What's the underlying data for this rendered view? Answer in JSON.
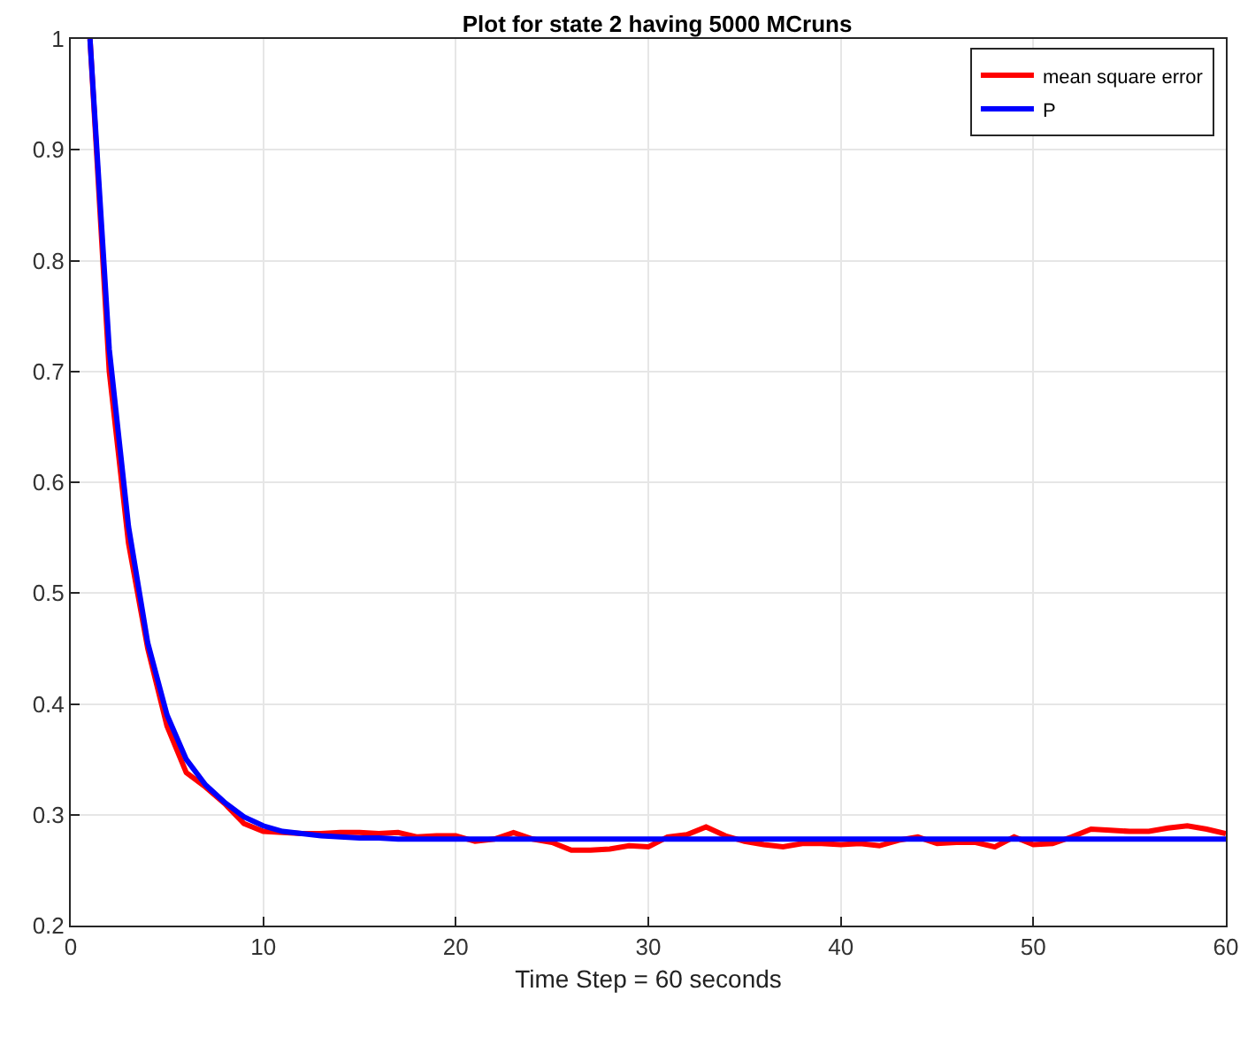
{
  "chart_data": {
    "type": "line",
    "title": "Plot for state 2 having 5000 MCruns",
    "xlabel": "Time Step = 60 seconds",
    "x": [
      1,
      2,
      3,
      4,
      5,
      6,
      7,
      8,
      9,
      10,
      11,
      12,
      13,
      14,
      15,
      16,
      17,
      18,
      19,
      20,
      21,
      22,
      23,
      24,
      25,
      26,
      27,
      28,
      29,
      30,
      31,
      32,
      33,
      34,
      35,
      36,
      37,
      38,
      39,
      40,
      41,
      42,
      43,
      44,
      45,
      46,
      47,
      48,
      49,
      50,
      51,
      52,
      53,
      54,
      55,
      56,
      57,
      58,
      59,
      60
    ],
    "series": [
      {
        "name": "mean square error",
        "color": "#ff0000",
        "values": [
          1.0,
          0.7,
          0.545,
          0.45,
          0.38,
          0.338,
          0.325,
          0.31,
          0.292,
          0.285,
          0.284,
          0.283,
          0.283,
          0.284,
          0.284,
          0.283,
          0.284,
          0.28,
          0.281,
          0.281,
          0.276,
          0.278,
          0.284,
          0.278,
          0.275,
          0.268,
          0.268,
          0.269,
          0.272,
          0.271,
          0.28,
          0.282,
          0.289,
          0.281,
          0.276,
          0.273,
          0.271,
          0.274,
          0.274,
          0.273,
          0.274,
          0.272,
          0.277,
          0.28,
          0.274,
          0.275,
          0.275,
          0.271,
          0.28,
          0.273,
          0.274,
          0.28,
          0.287,
          0.286,
          0.285,
          0.285,
          0.288,
          0.29,
          0.287,
          0.283
        ]
      },
      {
        "name": "P",
        "color": "#0000ff",
        "values": [
          1.0,
          0.72,
          0.56,
          0.455,
          0.39,
          0.35,
          0.327,
          0.311,
          0.298,
          0.29,
          0.285,
          0.283,
          0.281,
          0.28,
          0.279,
          0.279,
          0.278,
          0.278,
          0.278,
          0.278,
          0.278,
          0.278,
          0.278,
          0.278,
          0.278,
          0.278,
          0.278,
          0.278,
          0.278,
          0.278,
          0.278,
          0.278,
          0.278,
          0.278,
          0.278,
          0.278,
          0.278,
          0.278,
          0.278,
          0.278,
          0.278,
          0.278,
          0.278,
          0.278,
          0.278,
          0.278,
          0.278,
          0.278,
          0.278,
          0.278,
          0.278,
          0.278,
          0.278,
          0.278,
          0.278,
          0.278,
          0.278,
          0.278,
          0.278,
          0.278
        ]
      }
    ],
    "xlim": [
      0,
      60
    ],
    "xticks": [
      0,
      10,
      20,
      30,
      40,
      50,
      60
    ],
    "ylim": [
      0.2,
      1
    ],
    "yticks": [
      0.2,
      0.3,
      0.4,
      0.5,
      0.6,
      0.7,
      0.8,
      0.9,
      1
    ],
    "grid": true,
    "legend": "top right",
    "marker": "none",
    "line_style": "solid"
  }
}
